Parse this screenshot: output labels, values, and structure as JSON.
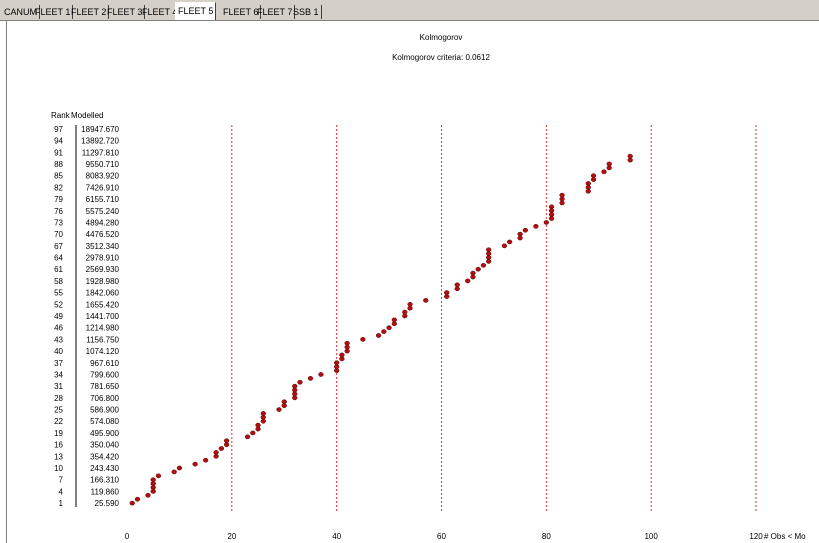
{
  "tabs": [
    {
      "label": "CANUM",
      "active": false
    },
    {
      "label": "FLEET 1",
      "active": false
    },
    {
      "label": "FLEET 2",
      "active": false
    },
    {
      "label": "FLEET 3",
      "active": false
    },
    {
      "label": "FLEET 4",
      "active": false
    },
    {
      "label": "FLEET 5",
      "active": true
    },
    {
      "label": "FLEET 6",
      "active": false
    },
    {
      "label": "FLEET 7",
      "active": false
    },
    {
      "label": "SSB 1",
      "active": false
    }
  ],
  "chart_data": {
    "type": "scatter",
    "title": "Kolmogorov",
    "subtitle": "Kolmogorov criteria: 0.0612",
    "rank_header": "Rank",
    "modelled_header": "Modelled",
    "xlabel": "# Obs < Mo",
    "xlim": [
      0,
      120
    ],
    "xticks": [
      0,
      20,
      40,
      60,
      80,
      100,
      120
    ],
    "ylim": [
      0,
      98
    ],
    "grid_x_dashed": [
      20,
      40,
      60,
      80,
      100,
      120
    ],
    "marker_color": "#b01010",
    "grid_color": "#e03030",
    "rank_labels": [
      {
        "rank": "97",
        "modelled": "18947.670"
      },
      {
        "rank": "94",
        "modelled": "13892.720"
      },
      {
        "rank": "91",
        "modelled": "11297.810"
      },
      {
        "rank": "88",
        "modelled": "9550.710"
      },
      {
        "rank": "85",
        "modelled": "8083.920"
      },
      {
        "rank": "82",
        "modelled": "7426.910"
      },
      {
        "rank": "79",
        "modelled": "6155.710"
      },
      {
        "rank": "76",
        "modelled": "5575.240"
      },
      {
        "rank": "73",
        "modelled": "4894.280"
      },
      {
        "rank": "70",
        "modelled": "4476.520"
      },
      {
        "rank": "67",
        "modelled": "3512.340"
      },
      {
        "rank": "64",
        "modelled": "2978.910"
      },
      {
        "rank": "61",
        "modelled": "2569.930"
      },
      {
        "rank": "58",
        "modelled": "1928.980"
      },
      {
        "rank": "55",
        "modelled": "1842.060"
      },
      {
        "rank": "52",
        "modelled": "1655.420"
      },
      {
        "rank": "49",
        "modelled": "1441.700"
      },
      {
        "rank": "46",
        "modelled": "1214.980"
      },
      {
        "rank": "43",
        "modelled": "1156.750"
      },
      {
        "rank": "40",
        "modelled": "1074.120"
      },
      {
        "rank": "37",
        "modelled": "967.610"
      },
      {
        "rank": "34",
        "modelled": "799.600"
      },
      {
        "rank": "31",
        "modelled": "781.650"
      },
      {
        "rank": "28",
        "modelled": "706.800"
      },
      {
        "rank": "25",
        "modelled": "586.900"
      },
      {
        "rank": "22",
        "modelled": "574.080"
      },
      {
        "rank": "19",
        "modelled": "495.900"
      },
      {
        "rank": "16",
        "modelled": "350.040"
      },
      {
        "rank": "13",
        "modelled": "354.420"
      },
      {
        "rank": "10",
        "modelled": "243.430"
      },
      {
        "rank": "7",
        "modelled": "166.310"
      },
      {
        "rank": "4",
        "modelled": "119.860"
      },
      {
        "rank": "1",
        "modelled": "25.590"
      }
    ],
    "points": [
      {
        "x": 1,
        "y": 1
      },
      {
        "x": 2,
        "y": 2
      },
      {
        "x": 4,
        "y": 3
      },
      {
        "x": 5,
        "y": 4
      },
      {
        "x": 5,
        "y": 5
      },
      {
        "x": 5,
        "y": 6
      },
      {
        "x": 5,
        "y": 7
      },
      {
        "x": 6,
        "y": 8
      },
      {
        "x": 9,
        "y": 9
      },
      {
        "x": 10,
        "y": 10
      },
      {
        "x": 13,
        "y": 11
      },
      {
        "x": 15,
        "y": 12
      },
      {
        "x": 17,
        "y": 13
      },
      {
        "x": 17,
        "y": 14
      },
      {
        "x": 18,
        "y": 15
      },
      {
        "x": 19,
        "y": 16
      },
      {
        "x": 19,
        "y": 17
      },
      {
        "x": 23,
        "y": 18
      },
      {
        "x": 24,
        "y": 19
      },
      {
        "x": 25,
        "y": 20
      },
      {
        "x": 25,
        "y": 21
      },
      {
        "x": 26,
        "y": 22
      },
      {
        "x": 26,
        "y": 23
      },
      {
        "x": 26,
        "y": 24
      },
      {
        "x": 29,
        "y": 25
      },
      {
        "x": 30,
        "y": 26
      },
      {
        "x": 30,
        "y": 27
      },
      {
        "x": 32,
        "y": 28
      },
      {
        "x": 32,
        "y": 29
      },
      {
        "x": 32,
        "y": 30
      },
      {
        "x": 32,
        "y": 31
      },
      {
        "x": 33,
        "y": 32
      },
      {
        "x": 35,
        "y": 33
      },
      {
        "x": 37,
        "y": 34
      },
      {
        "x": 40,
        "y": 35
      },
      {
        "x": 40,
        "y": 36
      },
      {
        "x": 40,
        "y": 37
      },
      {
        "x": 41,
        "y": 38
      },
      {
        "x": 41,
        "y": 39
      },
      {
        "x": 42,
        "y": 40
      },
      {
        "x": 42,
        "y": 41
      },
      {
        "x": 42,
        "y": 42
      },
      {
        "x": 45,
        "y": 43
      },
      {
        "x": 48,
        "y": 44
      },
      {
        "x": 49,
        "y": 45
      },
      {
        "x": 50,
        "y": 46
      },
      {
        "x": 51,
        "y": 47
      },
      {
        "x": 51,
        "y": 48
      },
      {
        "x": 53,
        "y": 49
      },
      {
        "x": 53,
        "y": 50
      },
      {
        "x": 54,
        "y": 51
      },
      {
        "x": 54,
        "y": 52
      },
      {
        "x": 57,
        "y": 53
      },
      {
        "x": 61,
        "y": 54
      },
      {
        "x": 61,
        "y": 55
      },
      {
        "x": 63,
        "y": 56
      },
      {
        "x": 63,
        "y": 57
      },
      {
        "x": 65,
        "y": 58
      },
      {
        "x": 66,
        "y": 59
      },
      {
        "x": 66,
        "y": 60
      },
      {
        "x": 67,
        "y": 61
      },
      {
        "x": 68,
        "y": 62
      },
      {
        "x": 69,
        "y": 63
      },
      {
        "x": 69,
        "y": 64
      },
      {
        "x": 69,
        "y": 65
      },
      {
        "x": 69,
        "y": 66
      },
      {
        "x": 72,
        "y": 67
      },
      {
        "x": 73,
        "y": 68
      },
      {
        "x": 75,
        "y": 69
      },
      {
        "x": 75,
        "y": 70
      },
      {
        "x": 76,
        "y": 71
      },
      {
        "x": 78,
        "y": 72
      },
      {
        "x": 80,
        "y": 73
      },
      {
        "x": 81,
        "y": 74
      },
      {
        "x": 81,
        "y": 75
      },
      {
        "x": 81,
        "y": 76
      },
      {
        "x": 81,
        "y": 77
      },
      {
        "x": 83,
        "y": 78
      },
      {
        "x": 83,
        "y": 79
      },
      {
        "x": 83,
        "y": 80
      },
      {
        "x": 88,
        "y": 81
      },
      {
        "x": 88,
        "y": 82
      },
      {
        "x": 88,
        "y": 83
      },
      {
        "x": 89,
        "y": 84
      },
      {
        "x": 89,
        "y": 85
      },
      {
        "x": 91,
        "y": 86
      },
      {
        "x": 92,
        "y": 87
      },
      {
        "x": 92,
        "y": 88
      },
      {
        "x": 96,
        "y": 89
      },
      {
        "x": 96,
        "y": 90
      }
    ]
  }
}
